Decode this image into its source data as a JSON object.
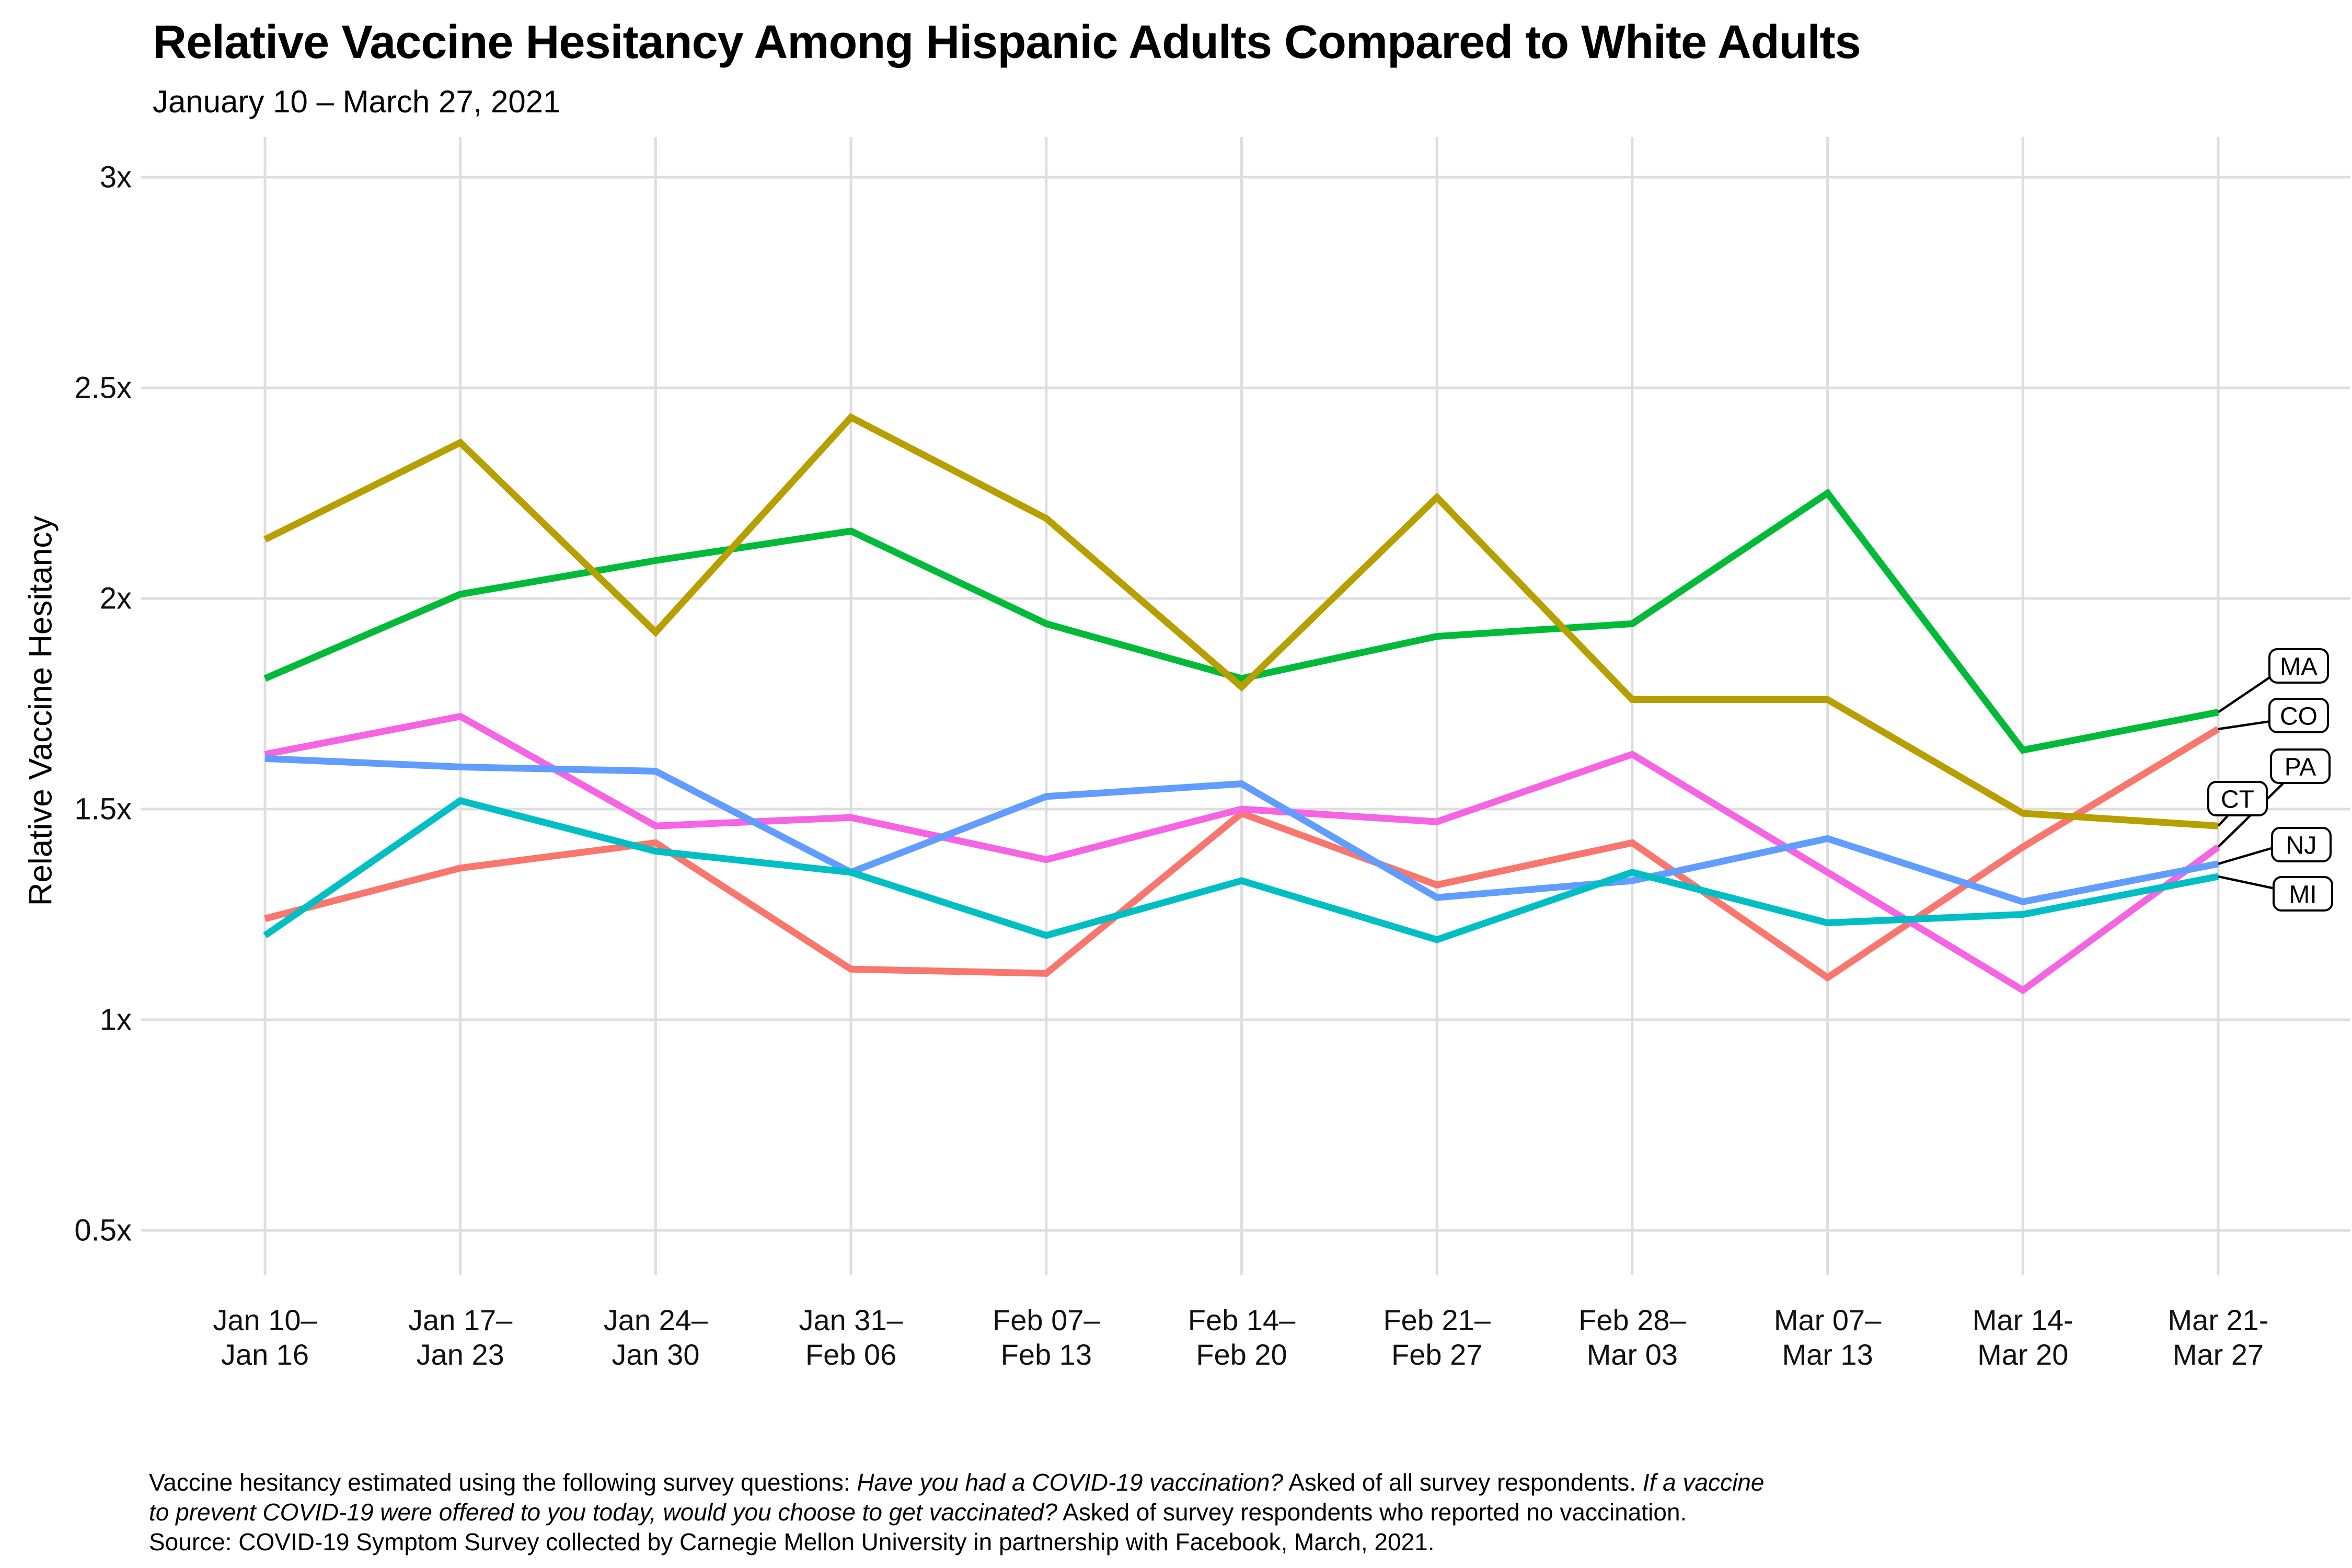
{
  "page": {
    "title": "Relative Vaccine Hesitancy Among Hispanic Adults Compared to White Adults",
    "subtitle": "January 10 – March 27, 2021"
  },
  "chart_data": {
    "type": "line",
    "title": "Relative Vaccine Hesitancy Among Hispanic Adults Compared to White Adults",
    "subtitle": "January 10 – March 27, 2021",
    "xlabel": "",
    "ylabel": "Relative Vaccine Hesitancy",
    "ylim": [
      0.5,
      3
    ],
    "grid": true,
    "legend_position": "right-edge-label-boxes",
    "y_ticks": [
      {
        "label": "3x",
        "value": 3
      },
      {
        "label": "2.5x",
        "value": 2.5
      },
      {
        "label": "2x",
        "value": 2
      },
      {
        "label": "1.5x",
        "value": 1.5
      },
      {
        "label": "1x",
        "value": 1
      },
      {
        "label": "0.5x",
        "value": 0.5
      }
    ],
    "categories": [
      [
        "Jan 10–",
        "Jan 16"
      ],
      [
        "Jan 17–",
        "Jan 23"
      ],
      [
        "Jan 24–",
        "Jan 30"
      ],
      [
        "Jan 31–",
        "Feb 06"
      ],
      [
        "Feb 07–",
        "Feb 13"
      ],
      [
        "Feb 14–",
        "Feb 20"
      ],
      [
        "Feb 21–",
        "Feb 27"
      ],
      [
        "Feb 28–",
        "Mar 03"
      ],
      [
        "Mar 07–",
        "Mar 13"
      ],
      [
        "Mar 14-",
        "Mar 20"
      ],
      [
        "Mar 21-",
        "Mar 27"
      ]
    ],
    "series": [
      {
        "name": "MA",
        "color": "#00BA38",
        "values": [
          1.81,
          2.01,
          2.09,
          2.16,
          1.94,
          1.81,
          1.91,
          1.94,
          2.25,
          1.64,
          1.73
        ]
      },
      {
        "name": "CO",
        "color": "#F8766D",
        "values": [
          1.24,
          1.36,
          1.42,
          1.12,
          1.11,
          1.49,
          1.32,
          1.42,
          1.1,
          1.41,
          1.69
        ]
      },
      {
        "name": "PA",
        "color": "#F564E3",
        "values": [
          1.63,
          1.72,
          1.46,
          1.48,
          1.38,
          1.5,
          1.47,
          1.63,
          1.35,
          1.07,
          1.41
        ]
      },
      {
        "name": "CT",
        "color": "#B79F00",
        "values": [
          2.14,
          2.37,
          1.92,
          2.43,
          2.19,
          1.79,
          2.24,
          1.76,
          1.76,
          1.49,
          1.46
        ]
      },
      {
        "name": "NJ",
        "color": "#619CFF",
        "values": [
          1.62,
          1.6,
          1.59,
          1.35,
          1.53,
          1.56,
          1.29,
          1.33,
          1.43,
          1.28,
          1.37
        ]
      },
      {
        "name": "MI",
        "color": "#00BFC4",
        "values": [
          1.2,
          1.52,
          1.4,
          1.35,
          1.2,
          1.33,
          1.19,
          1.35,
          1.23,
          1.25,
          1.34
        ]
      }
    ],
    "grid_color": "#DEDEDE"
  },
  "caption": {
    "lines": [
      [
        {
          "text": "Vaccine hesitancy estimated using the following survey questions: ",
          "italic": false
        },
        {
          "text": "Have you had a COVID-19 vaccination?",
          "italic": true
        },
        {
          "text": " Asked of all survey respondents. ",
          "italic": false
        },
        {
          "text": "If a vaccine",
          "italic": true
        }
      ],
      [
        {
          "text": "to prevent COVID-19 were offered to you today, would you choose to get vaccinated?",
          "italic": true
        },
        {
          "text": " Asked of survey respondents who reported no vaccination.",
          "italic": false
        }
      ],
      [
        {
          "text": "Source: COVID-19 Symptom Survey collected by Carnegie Mellon University in partnership with Facebook, March, 2021.",
          "italic": false
        }
      ]
    ]
  }
}
